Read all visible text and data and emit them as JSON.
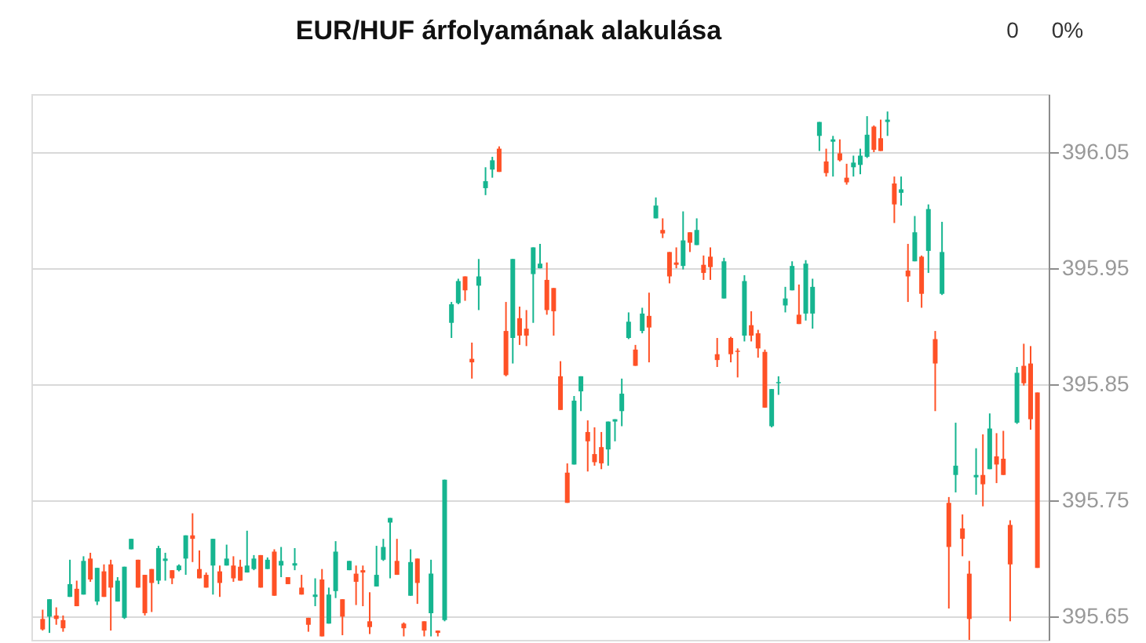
{
  "chart_data": {
    "type": "candlestick",
    "title": "EUR/HUF árfolyamának alakulása",
    "annotations": [
      "0",
      "0%"
    ],
    "categories": [
      null,
      null,
      null,
      null,
      null,
      null,
      null,
      null,
      null,
      null,
      null,
      null,
      null,
      null,
      null,
      null,
      null,
      null,
      null,
      null,
      null,
      null,
      null,
      null,
      null,
      null,
      null,
      null,
      null,
      null,
      null,
      null,
      null,
      null,
      null,
      null,
      null,
      null,
      null,
      null,
      null,
      null,
      null,
      null,
      null,
      null,
      null,
      null,
      null,
      null,
      null,
      null,
      null,
      null,
      null,
      null,
      null,
      null,
      null,
      null,
      null,
      null,
      null,
      null,
      null,
      null,
      null,
      null,
      null,
      null,
      null,
      null,
      null,
      null,
      null,
      null,
      null,
      null,
      null,
      null,
      null,
      null,
      null,
      null,
      null,
      null,
      null,
      null,
      null,
      null,
      null,
      null,
      null,
      null,
      null,
      null,
      null,
      null,
      null,
      null,
      null,
      null,
      null,
      null,
      null,
      null,
      null,
      null,
      null,
      null,
      null,
      null,
      null,
      null,
      null,
      null,
      null,
      null,
      null,
      null,
      null,
      null,
      null,
      null,
      null,
      null,
      null,
      null,
      null,
      null,
      null,
      null,
      null,
      null,
      null,
      null,
      null,
      null,
      null,
      null,
      null,
      null,
      null,
      null,
      null,
      null,
      null
    ],
    "ohlc": [
      [
        395.648,
        395.656,
        395.638,
        395.639
      ],
      [
        395.65,
        395.665,
        395.636,
        395.665
      ],
      [
        395.651,
        395.658,
        395.643,
        395.648
      ],
      [
        395.647,
        395.651,
        395.637,
        395.64
      ],
      [
        395.667,
        395.699,
        395.667,
        395.678
      ],
      [
        395.674,
        395.681,
        395.659,
        395.659
      ],
      [
        395.669,
        395.702,
        395.669,
        395.698
      ],
      [
        395.7,
        395.705,
        395.68,
        395.682
      ],
      [
        395.663,
        395.692,
        395.66,
        395.692
      ],
      [
        395.689,
        395.695,
        395.667,
        395.667
      ],
      [
        395.695,
        395.699,
        395.638,
        395.675
      ],
      [
        395.663,
        395.684,
        395.663,
        395.681
      ],
      [
        395.649,
        395.693,
        395.648,
        395.693
      ],
      [
        395.708,
        395.717,
        395.708,
        395.717
      ],
      [
        395.699,
        395.699,
        395.675,
        395.675
      ],
      [
        395.686,
        395.686,
        395.651,
        395.653
      ],
      [
        395.691,
        395.691,
        395.654,
        395.679
      ],
      [
        395.681,
        395.711,
        395.678,
        395.709
      ],
      [
        395.698,
        395.705,
        395.681,
        395.7
      ],
      [
        395.69,
        395.69,
        395.678,
        395.683
      ],
      [
        395.69,
        395.695,
        395.689,
        395.694
      ],
      [
        395.7,
        395.72,
        395.686,
        395.72
      ],
      [
        395.72,
        395.739,
        395.697,
        395.717
      ],
      [
        395.691,
        395.707,
        395.683,
        395.683
      ],
      [
        395.686,
        395.688,
        395.675,
        395.675
      ],
      [
        395.694,
        395.717,
        395.669,
        395.717
      ],
      [
        395.689,
        395.694,
        395.667,
        395.679
      ],
      [
        395.694,
        395.712,
        395.694,
        395.7
      ],
      [
        395.694,
        395.702,
        395.68,
        395.683
      ],
      [
        395.693,
        395.699,
        395.681,
        395.681
      ],
      [
        395.688,
        395.724,
        395.688,
        395.694
      ],
      [
        395.691,
        395.703,
        395.69,
        395.7
      ],
      [
        395.703,
        395.703,
        395.675,
        395.675
      ],
      [
        395.691,
        395.701,
        395.691,
        395.699
      ],
      [
        395.706,
        395.708,
        395.668,
        395.668
      ],
      [
        395.694,
        395.71,
        395.684,
        395.698
      ],
      [
        395.684,
        395.684,
        395.678,
        395.678
      ],
      [
        395.694,
        395.709,
        395.69,
        395.696
      ],
      [
        395.675,
        395.686,
        395.669,
        395.669
      ],
      [
        395.649,
        395.649,
        395.637,
        395.643
      ],
      [
        395.667,
        395.683,
        395.659,
        395.669
      ],
      [
        395.682,
        395.691,
        395.633,
        395.633
      ],
      [
        395.644,
        395.675,
        395.644,
        395.669
      ],
      [
        395.672,
        395.715,
        395.666,
        395.706
      ],
      [
        395.665,
        395.665,
        395.634,
        395.65
      ],
      [
        395.69,
        395.698,
        395.69,
        395.698
      ],
      [
        395.687,
        395.694,
        395.66,
        395.68
      ],
      [
        395.69,
        395.694,
        395.659,
        395.688
      ],
      [
        395.646,
        395.671,
        395.635,
        395.641
      ],
      [
        395.676,
        395.711,
        395.676,
        395.686
      ],
      [
        395.699,
        395.717,
        395.698,
        395.71
      ],
      [
        395.731,
        395.735,
        395.683,
        395.735
      ],
      [
        395.698,
        395.717,
        395.686,
        395.686
      ],
      [
        395.644,
        395.645,
        395.633,
        395.64
      ],
      [
        395.668,
        395.708,
        395.668,
        395.697
      ],
      [
        395.7,
        395.7,
        395.661,
        395.679
      ],
      [
        395.646,
        395.646,
        395.633,
        395.638
      ],
      [
        395.653,
        395.699,
        395.633,
        395.687
      ],
      [
        395.638,
        395.638,
        395.633,
        395.636
      ],
      [
        395.647,
        395.768,
        395.646,
        395.768
      ],
      [
        395.903,
        395.921,
        395.89,
        395.919
      ],
      [
        395.92,
        395.941,
        395.919,
        395.939
      ],
      [
        395.943,
        395.943,
        395.922,
        395.931
      ],
      [
        395.872,
        395.886,
        395.855,
        395.869
      ],
      [
        395.935,
        395.958,
        395.914,
        395.943
      ],
      [
        396.019,
        396.037,
        396.013,
        396.025
      ],
      [
        396.035,
        396.046,
        396.028,
        396.043
      ],
      [
        396.053,
        396.055,
        396.033,
        396.033
      ],
      [
        395.896,
        395.921,
        395.857,
        395.858
      ],
      [
        395.89,
        395.958,
        395.868,
        395.958
      ],
      [
        395.907,
        395.917,
        395.884,
        395.892
      ],
      [
        395.898,
        395.914,
        395.883,
        395.892
      ],
      [
        395.945,
        395.968,
        395.903,
        395.968
      ],
      [
        395.95,
        395.971,
        395.95,
        395.954
      ],
      [
        395.94,
        395.955,
        395.91,
        395.914
      ],
      [
        395.933,
        395.933,
        395.892,
        395.913
      ],
      [
        395.857,
        395.87,
        395.828,
        395.828
      ],
      [
        395.774,
        395.782,
        395.748,
        395.748
      ],
      [
        395.781,
        395.84,
        395.781,
        395.836
      ],
      [
        395.844,
        395.857,
        395.827,
        395.857
      ],
      [
        395.809,
        395.819,
        395.775,
        395.801
      ],
      [
        395.79,
        395.813,
        395.78,
        395.783
      ],
      [
        395.796,
        395.809,
        395.777,
        395.782
      ],
      [
        395.794,
        395.818,
        395.78,
        395.818
      ],
      [
        395.818,
        395.82,
        395.801,
        395.82
      ],
      [
        395.827,
        395.855,
        395.814,
        395.842
      ],
      [
        395.89,
        395.912,
        395.889,
        395.904
      ],
      [
        395.88,
        395.884,
        395.866,
        395.866
      ],
      [
        395.896,
        395.916,
        395.894,
        395.911
      ],
      [
        395.909,
        395.929,
        395.869,
        395.899
      ],
      [
        395.993,
        396.011,
        395.993,
        396.004
      ],
      [
        395.983,
        395.993,
        395.976,
        395.98
      ],
      [
        395.964,
        395.964,
        395.937,
        395.943
      ],
      [
        395.955,
        395.968,
        395.95,
        395.953
      ],
      [
        395.952,
        395.999,
        395.949,
        395.974
      ],
      [
        395.981,
        395.981,
        395.964,
        395.972
      ],
      [
        395.97,
        395.993,
        395.97,
        395.983
      ],
      [
        395.953,
        395.961,
        395.94,
        395.946
      ],
      [
        395.96,
        395.968,
        395.94,
        395.951
      ],
      [
        395.876,
        395.89,
        395.865,
        395.871
      ],
      [
        395.924,
        395.959,
        395.924,
        395.956
      ],
      [
        395.89,
        395.891,
        395.869,
        395.876
      ],
      [
        395.879,
        395.881,
        395.856,
        395.878
      ],
      [
        395.892,
        395.944,
        395.887,
        395.939
      ],
      [
        395.901,
        395.913,
        395.887,
        395.892
      ],
      [
        395.894,
        395.897,
        395.873,
        395.881
      ],
      [
        395.878,
        395.88,
        395.83,
        395.83
      ],
      [
        395.814,
        395.846,
        395.813,
        395.846
      ],
      [
        395.851,
        395.857,
        395.841,
        395.852
      ],
      [
        395.918,
        395.934,
        395.912,
        395.924
      ],
      [
        395.931,
        395.956,
        395.931,
        395.952
      ],
      [
        395.91,
        395.936,
        395.902,
        395.902
      ],
      [
        395.911,
        395.957,
        395.905,
        395.954
      ],
      [
        395.911,
        395.941,
        395.898,
        395.934
      ],
      [
        396.064,
        396.076,
        396.051,
        396.076
      ],
      [
        396.042,
        396.053,
        396.029,
        396.032
      ],
      [
        396.059,
        396.064,
        396.029,
        396.061
      ],
      [
        396.049,
        396.061,
        396.042,
        396.043
      ],
      [
        396.028,
        396.04,
        396.022,
        396.024
      ],
      [
        396.037,
        396.047,
        396.029,
        396.041
      ],
      [
        396.039,
        396.053,
        396.031,
        396.047
      ],
      [
        396.046,
        396.081,
        396.045,
        396.065
      ],
      [
        396.072,
        396.073,
        396.05,
        396.052
      ],
      [
        396.062,
        396.078,
        396.051,
        396.051
      ],
      [
        396.076,
        396.085,
        396.064,
        396.078
      ],
      [
        396.023,
        396.029,
        395.989,
        396.005
      ],
      [
        396.015,
        396.029,
        396.004,
        396.018
      ],
      [
        395.948,
        395.971,
        395.921,
        395.943
      ],
      [
        395.956,
        395.995,
        395.956,
        395.981
      ],
      [
        395.96,
        395.961,
        395.916,
        395.928
      ],
      [
        395.965,
        396.005,
        395.946,
        396.001
      ],
      [
        395.889,
        395.896,
        395.827,
        395.868
      ],
      [
        395.928,
        395.99,
        395.927,
        395.964
      ],
      [
        395.748,
        395.753,
        395.657,
        395.71
      ],
      [
        395.772,
        395.817,
        395.757,
        395.78
      ],
      [
        395.726,
        395.738,
        395.702,
        395.717
      ],
      [
        395.687,
        395.698,
        395.63,
        395.648
      ],
      [
        395.77,
        395.795,
        395.755,
        395.772
      ],
      [
        395.772,
        395.807,
        395.745,
        395.764
      ],
      [
        395.777,
        395.825,
        395.777,
        395.812
      ],
      [
        395.788,
        395.808,
        395.765,
        395.781
      ],
      [
        395.786,
        395.81,
        395.772,
        395.772
      ],
      [
        395.729,
        395.733,
        395.646,
        395.695
      ],
      [
        395.817,
        395.865,
        395.816,
        395.86
      ],
      [
        395.866,
        395.885,
        395.849,
        395.851
      ],
      [
        395.868,
        395.883,
        395.811,
        395.82
      ],
      [
        395.843,
        395.843,
        395.692,
        395.692
      ]
    ],
    "colors": [
      "#ff5126",
      "#16b590",
      "#ff5126",
      "#ff5126",
      "#16b590",
      "#ff5126",
      "#16b590",
      "#ff5126",
      "#16b590",
      "#ff5126",
      "#ff5126",
      "#16b590",
      "#16b590",
      "#16b590",
      "#ff5126",
      "#ff5126",
      "#ff5126",
      "#16b590",
      "#16b590",
      "#ff5126",
      "#16b590",
      "#16b590",
      "#ff5126",
      "#ff5126",
      "#ff5126",
      "#16b590",
      "#ff5126",
      "#16b590",
      "#ff5126",
      "#ff5126",
      "#16b590",
      "#16b590",
      "#ff5126",
      "#16b590",
      "#ff5126",
      "#16b590",
      "#ff5126",
      "#16b590",
      "#ff5126",
      "#ff5126",
      "#16b590",
      "#ff5126",
      "#16b590",
      "#16b590",
      "#ff5126",
      "#16b590",
      "#ff5126",
      "#ff5126",
      "#ff5126",
      "#16b590",
      "#16b590",
      "#16b590",
      "#ff5126",
      "#ff5126",
      "#16b590",
      "#ff5126",
      "#ff5126",
      "#16b590",
      "#ff5126",
      "#16b590",
      "#16b590",
      "#16b590",
      "#ff5126",
      "#ff5126",
      "#16b590",
      "#16b590",
      "#16b590",
      "#ff5126",
      "#ff5126",
      "#16b590",
      "#ff5126",
      "#ff5126",
      "#16b590",
      "#16b590",
      "#ff5126",
      "#ff5126",
      "#ff5126",
      "#ff5126",
      "#16b590",
      "#16b590",
      "#ff5126",
      "#ff5126",
      "#ff5126",
      "#16b590",
      "#16b590",
      "#16b590",
      "#16b590",
      "#ff5126",
      "#16b590",
      "#ff5126",
      "#16b590",
      "#ff5126",
      "#ff5126",
      "#ff5126",
      "#16b590",
      "#ff5126",
      "#16b590",
      "#ff5126",
      "#ff5126",
      "#ff5126",
      "#16b590",
      "#ff5126",
      "#ff5126",
      "#16b590",
      "#ff5126",
      "#ff5126",
      "#ff5126",
      "#16b590",
      "#16b590",
      "#16b590",
      "#16b590",
      "#ff5126",
      "#16b590",
      "#16b590",
      "#16b590",
      "#ff5126",
      "#16b590",
      "#ff5126",
      "#ff5126",
      "#16b590",
      "#16b590",
      "#16b590",
      "#ff5126",
      "#ff5126",
      "#16b590",
      "#ff5126",
      "#16b590",
      "#ff5126",
      "#16b590",
      "#ff5126",
      "#16b590",
      "#ff5126",
      "#16b590",
      "#ff5126",
      "#16b590",
      "#ff5126",
      "#ff5126",
      "#16b590",
      "#ff5126",
      "#16b590",
      "#ff5126",
      "#ff5126",
      "#ff5126",
      "#16b590",
      "#ff5126",
      "#ff5126",
      "#ff5126"
    ],
    "ylim": [
      395.63,
      396.1
    ],
    "yticks": [
      395.65,
      395.75,
      395.85,
      395.95,
      396.05
    ],
    "grid": "y",
    "tick_labels": "y"
  }
}
